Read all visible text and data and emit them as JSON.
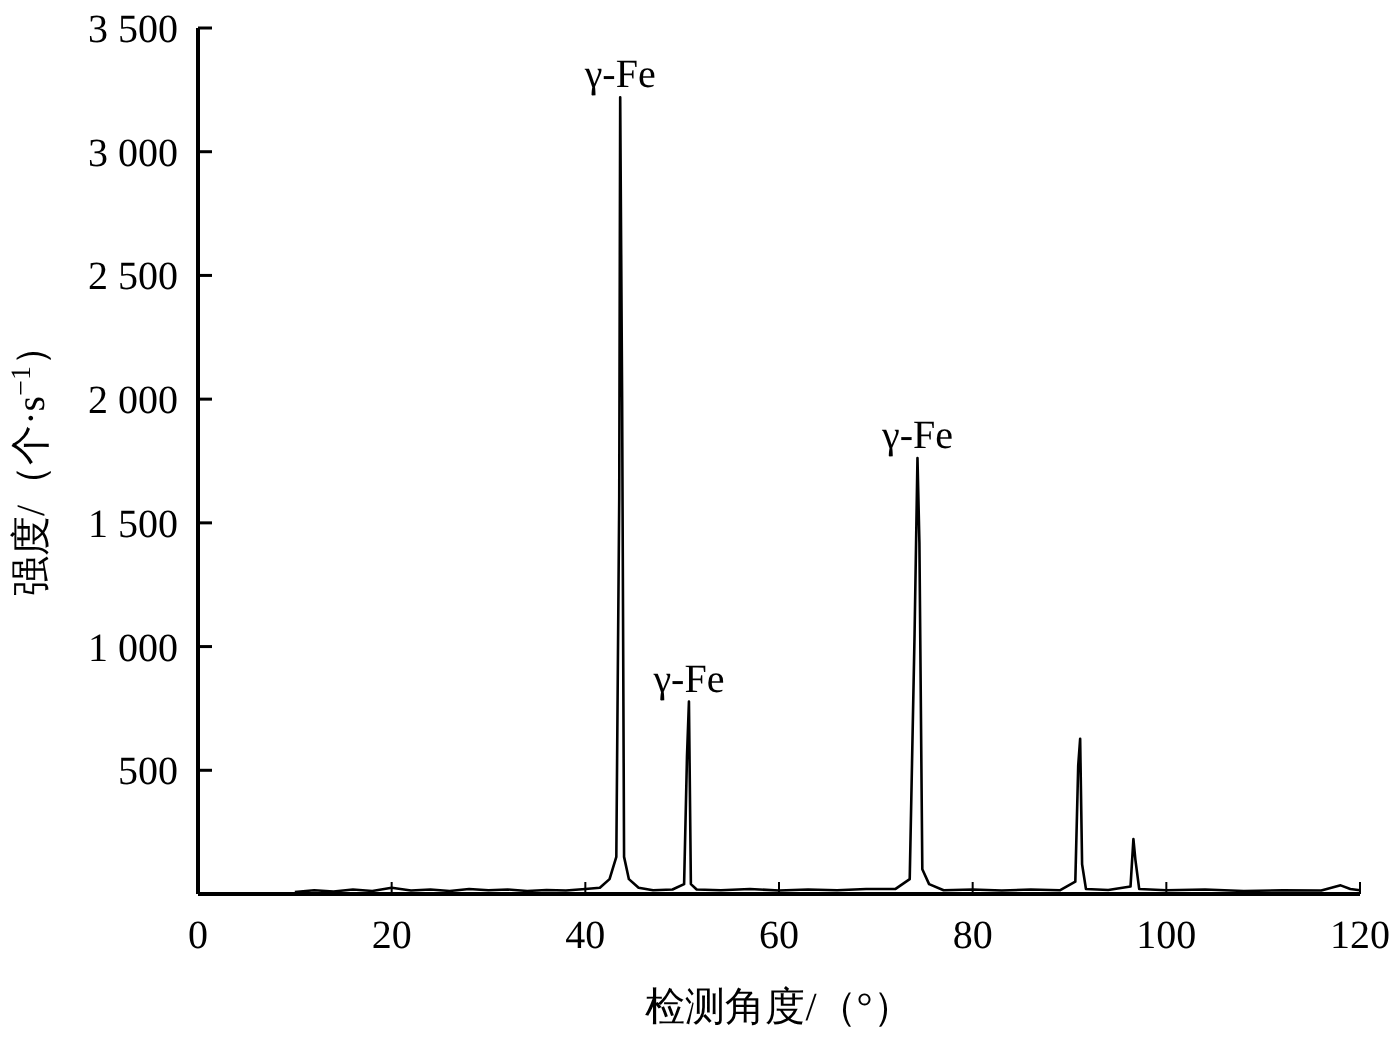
{
  "chart_data": {
    "type": "line",
    "xlabel": "检测角度/（°）",
    "ylabel": "强度/（个·s$^{−1}$）",
    "xlim": [
      0,
      120
    ],
    "xticks": [
      0,
      20,
      40,
      60,
      80,
      100,
      120
    ],
    "ylim": [
      0,
      3500
    ],
    "yticks": [
      {
        "value": 500,
        "label": "500"
      },
      {
        "value": 1000,
        "label": "1 000"
      },
      {
        "value": 1500,
        "label": "1 500"
      },
      {
        "value": 2000,
        "label": "2 000"
      },
      {
        "value": 2500,
        "label": "2 500"
      },
      {
        "value": 3000,
        "label": "3 000"
      },
      {
        "value": 3500,
        "label": "3 500"
      }
    ],
    "grid": false,
    "marker": "none",
    "line_style": "solid",
    "series": [
      {
        "color": "#000000",
        "x": [
          10,
          12,
          14,
          16,
          18,
          20,
          22,
          24,
          26,
          28,
          30,
          32,
          34,
          36,
          38,
          40,
          41.5,
          42.5,
          43.2,
          43.5,
          43.6,
          43.8,
          44.0,
          44.5,
          45.5,
          47,
          49,
          50.2,
          50.5,
          50.7,
          50.9,
          51.5,
          54,
          57,
          60,
          63,
          66,
          69,
          72,
          73.5,
          74.0,
          74.3,
          74.5,
          74.8,
          75.5,
          77,
          80,
          83,
          86,
          89,
          90.6,
          90.9,
          91.1,
          91.3,
          91.7,
          94,
          96.3,
          96.6,
          96.8,
          97.2,
          100,
          104,
          108,
          112,
          116,
          118,
          119,
          120
        ],
        "values": [
          8,
          15,
          10,
          18,
          12,
          25,
          14,
          18,
          12,
          20,
          15,
          18,
          12,
          16,
          14,
          20,
          25,
          60,
          150,
          1600,
          3220,
          1990,
          150,
          60,
          25,
          15,
          18,
          40,
          560,
          778,
          40,
          18,
          15,
          20,
          14,
          18,
          15,
          20,
          20,
          60,
          1050,
          1762,
          1420,
          100,
          40,
          15,
          18,
          14,
          18,
          15,
          50,
          520,
          627,
          120,
          20,
          16,
          30,
          222,
          140,
          20,
          15,
          18,
          12,
          15,
          14,
          35,
          20,
          15
        ]
      }
    ],
    "annotations": [
      {
        "text": "γ-Fe",
        "x": 43.6,
        "y": 3220
      },
      {
        "text": "γ-Fe",
        "x": 50.7,
        "y": 778
      },
      {
        "text": "γ-Fe",
        "x": 74.3,
        "y": 1762
      }
    ]
  }
}
